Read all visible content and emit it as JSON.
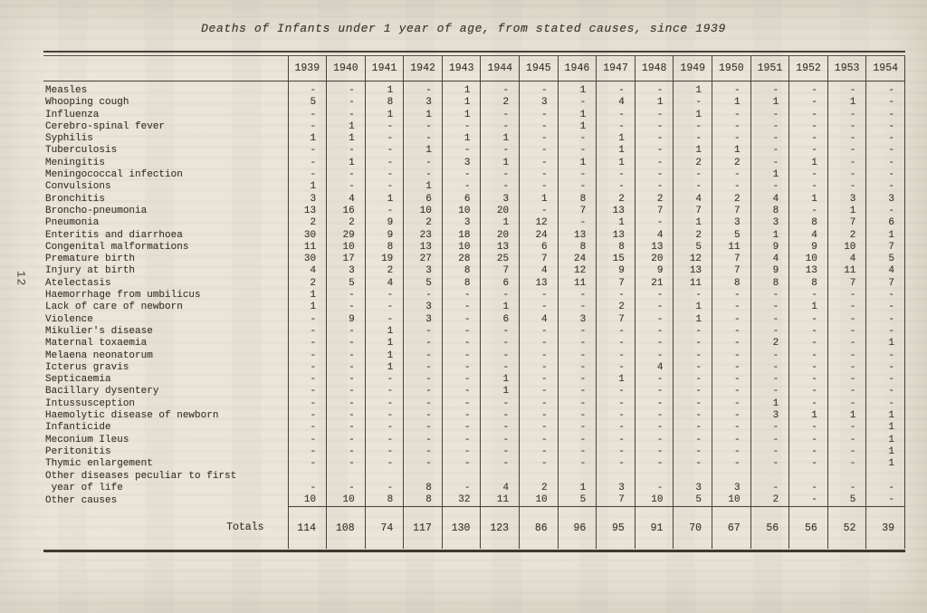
{
  "page": {
    "number": "12",
    "title": "Deaths of Infants under 1 year of age, from stated causes, since 1939"
  },
  "colors": {
    "paper": "#e9e4d6",
    "ink": "#3c372e",
    "rule": "#45413a"
  },
  "table": {
    "years": [
      "1939",
      "1940",
      "1941",
      "1942",
      "1943",
      "1944",
      "1945",
      "1946",
      "1947",
      "1948",
      "1949",
      "1950",
      "1951",
      "1952",
      "1953",
      "1954"
    ],
    "rows": [
      {
        "label": "Measles",
        "values": [
          "-",
          "-",
          "1",
          "-",
          "1",
          "-",
          "-",
          "1",
          "-",
          "-",
          "1",
          "-",
          "-",
          "-",
          "-",
          "-"
        ]
      },
      {
        "label": "Whooping cough",
        "values": [
          "5",
          "-",
          "8",
          "3",
          "1",
          "2",
          "3",
          "-",
          "4",
          "1",
          "-",
          "1",
          "1",
          "-",
          "1",
          "-"
        ]
      },
      {
        "label": "Influenza",
        "values": [
          "-",
          "-",
          "1",
          "1",
          "1",
          "-",
          "-",
          "1",
          "-",
          "-",
          "1",
          "-",
          "-",
          "-",
          "-",
          "-"
        ]
      },
      {
        "label": "Cerebro-spinal fever",
        "values": [
          "-",
          "1",
          "-",
          "-",
          "-",
          "-",
          "-",
          "1",
          "-",
          "-",
          "-",
          "-",
          "-",
          "-",
          "-",
          "-"
        ]
      },
      {
        "label": "Syphilis",
        "values": [
          "1",
          "1",
          "-",
          "-",
          "1",
          "1",
          "-",
          "-",
          "1",
          "-",
          "-",
          "-",
          "-",
          "-",
          "-",
          "-"
        ]
      },
      {
        "label": "Tuberculosis",
        "values": [
          "-",
          "-",
          "-",
          "1",
          "-",
          "-",
          "-",
          "-",
          "1",
          "-",
          "1",
          "1",
          "-",
          "-",
          "-",
          "-"
        ]
      },
      {
        "label": "Meningitis",
        "values": [
          "-",
          "1",
          "-",
          "-",
          "3",
          "1",
          "-",
          "1",
          "1",
          "-",
          "2",
          "2",
          "-",
          "1",
          "-",
          "-"
        ]
      },
      {
        "label": "Meningococcal infection",
        "values": [
          "-",
          "-",
          "-",
          "-",
          "-",
          "-",
          "-",
          "-",
          "-",
          "-",
          "-",
          "-",
          "1",
          "-",
          "-",
          "-"
        ]
      },
      {
        "label": "Convulsions",
        "values": [
          "1",
          "-",
          "-",
          "1",
          "-",
          "-",
          "-",
          "-",
          "-",
          "-",
          "-",
          "-",
          "-",
          "-",
          "-",
          "-"
        ]
      },
      {
        "label": "Bronchitis",
        "values": [
          "3",
          "4",
          "1",
          "6",
          "6",
          "3",
          "1",
          "8",
          "2",
          "2",
          "4",
          "2",
          "4",
          "1",
          "3",
          "3"
        ]
      },
      {
        "label": "Broncho-pneumonia",
        "values": [
          "13",
          "16",
          "-",
          "10",
          "10",
          "20",
          "-",
          "7",
          "13",
          "7",
          "7",
          "7",
          "8",
          "-",
          "1",
          "-"
        ]
      },
      {
        "label": "Pneumonia",
        "values": [
          "2",
          "2",
          "9",
          "2",
          "3",
          "1",
          "12",
          "-",
          "1",
          "-",
          "1",
          "3",
          "3",
          "8",
          "7",
          "6"
        ]
      },
      {
        "label": "Enteritis and diarrhoea",
        "values": [
          "30",
          "29",
          "9",
          "23",
          "18",
          "20",
          "24",
          "13",
          "13",
          "4",
          "2",
          "5",
          "1",
          "4",
          "2",
          "1"
        ]
      },
      {
        "label": "Congenital malformations",
        "values": [
          "11",
          "10",
          "8",
          "13",
          "10",
          "13",
          "6",
          "8",
          "8",
          "13",
          "5",
          "11",
          "9",
          "9",
          "10",
          "7"
        ]
      },
      {
        "label": "Premature birth",
        "values": [
          "30",
          "17",
          "19",
          "27",
          "28",
          "25",
          "7",
          "24",
          "15",
          "20",
          "12",
          "7",
          "4",
          "10",
          "4",
          "5"
        ]
      },
      {
        "label": "Injury at birth",
        "values": [
          "4",
          "3",
          "2",
          "3",
          "8",
          "7",
          "4",
          "12",
          "9",
          "9",
          "13",
          "7",
          "9",
          "13",
          "11",
          "4"
        ]
      },
      {
        "label": "Atelectasis",
        "values": [
          "2",
          "5",
          "4",
          "5",
          "8",
          "6",
          "13",
          "11",
          "7",
          "21",
          "11",
          "8",
          "8",
          "8",
          "7",
          "7"
        ]
      },
      {
        "label": "Haemorrhage from umbilicus",
        "values": [
          "1",
          "-",
          "-",
          "-",
          "-",
          "-",
          "-",
          "-",
          "-",
          "-",
          "-",
          "-",
          "-",
          "-",
          "-",
          "-"
        ]
      },
      {
        "label": "Lack of care of newborn",
        "values": [
          "1",
          "-",
          "-",
          "3",
          "-",
          "1",
          "-",
          "-",
          "2",
          "-",
          "1",
          "-",
          "-",
          "1",
          "-",
          "-"
        ]
      },
      {
        "label": "Violence",
        "values": [
          "-",
          "9",
          "-",
          "3",
          "-",
          "6",
          "4",
          "3",
          "7",
          "-",
          "1",
          "-",
          "-",
          "-",
          "-",
          "-"
        ]
      },
      {
        "label": "Mikulier's disease",
        "values": [
          "-",
          "-",
          "1",
          "-",
          "-",
          "-",
          "-",
          "-",
          "-",
          "-",
          "-",
          "-",
          "-",
          "-",
          "-",
          "-"
        ]
      },
      {
        "label": "Maternal toxaemia",
        "values": [
          "-",
          "-",
          "1",
          "-",
          "-",
          "-",
          "-",
          "-",
          "-",
          "-",
          "-",
          "-",
          "2",
          "-",
          "-",
          "1"
        ]
      },
      {
        "label": "Melaena neonatorum",
        "values": [
          "-",
          "-",
          "1",
          "-",
          "-",
          "-",
          "-",
          "-",
          "-",
          "-",
          "-",
          "-",
          "-",
          "-",
          "-",
          "-"
        ]
      },
      {
        "label": "Icterus gravis",
        "values": [
          "-",
          "-",
          "1",
          "-",
          "-",
          "-",
          "-",
          "-",
          "-",
          "4",
          "-",
          "-",
          "-",
          "-",
          "-",
          "-"
        ]
      },
      {
        "label": "Septicaemia",
        "values": [
          "-",
          "-",
          "-",
          "-",
          "-",
          "1",
          "-",
          "-",
          "1",
          "-",
          "-",
          "-",
          "-",
          "-",
          "-",
          "-"
        ]
      },
      {
        "label": "Bacillary dysentery",
        "values": [
          "-",
          "-",
          "-",
          "-",
          "-",
          "1",
          "-",
          "-",
          "-",
          "-",
          "-",
          "-",
          "-",
          "-",
          "-",
          "-"
        ]
      },
      {
        "label": "Intussusception",
        "values": [
          "-",
          "-",
          "-",
          "-",
          "-",
          "-",
          "-",
          "-",
          "-",
          "-",
          "-",
          "-",
          "1",
          "-",
          "-",
          "-"
        ]
      },
      {
        "label": "Haemolytic disease of newborn",
        "values": [
          "-",
          "-",
          "-",
          "-",
          "-",
          "-",
          "-",
          "-",
          "-",
          "-",
          "-",
          "-",
          "3",
          "1",
          "1",
          "1"
        ]
      },
      {
        "label": "Infanticide",
        "values": [
          "-",
          "-",
          "-",
          "-",
          "-",
          "-",
          "-",
          "-",
          "-",
          "-",
          "-",
          "-",
          "-",
          "-",
          "-",
          "1"
        ]
      },
      {
        "label": "Meconium Ileus",
        "values": [
          "-",
          "-",
          "-",
          "-",
          "-",
          "-",
          "-",
          "-",
          "-",
          "-",
          "-",
          "-",
          "-",
          "-",
          "-",
          "1"
        ]
      },
      {
        "label": "Peritonitis",
        "values": [
          "-",
          "-",
          "-",
          "-",
          "-",
          "-",
          "-",
          "-",
          "-",
          "-",
          "-",
          "-",
          "-",
          "-",
          "-",
          "1"
        ]
      },
      {
        "label": "Thymic enlargement",
        "values": [
          "-",
          "-",
          "-",
          "-",
          "-",
          "-",
          "-",
          "-",
          "-",
          "-",
          "-",
          "-",
          "-",
          "-",
          "-",
          "1"
        ]
      },
      {
        "label": "Other diseases peculiar to first\n year of life",
        "values": [
          "-",
          "-",
          "-",
          "8",
          "-",
          "4",
          "2",
          "1",
          "3",
          "-",
          "3",
          "3",
          "-",
          "-",
          "-",
          "-"
        ]
      },
      {
        "label": "Other causes",
        "values": [
          "10",
          "10",
          "8",
          "8",
          "32",
          "11",
          "10",
          "5",
          "7",
          "10",
          "5",
          "10",
          "2",
          "-",
          "5",
          "-"
        ]
      }
    ],
    "totals_label": "Totals",
    "totals": [
      "114",
      "108",
      "74",
      "117",
      "130",
      "123",
      "86",
      "96",
      "95",
      "91",
      "70",
      "67",
      "56",
      "56",
      "52",
      "39"
    ]
  }
}
